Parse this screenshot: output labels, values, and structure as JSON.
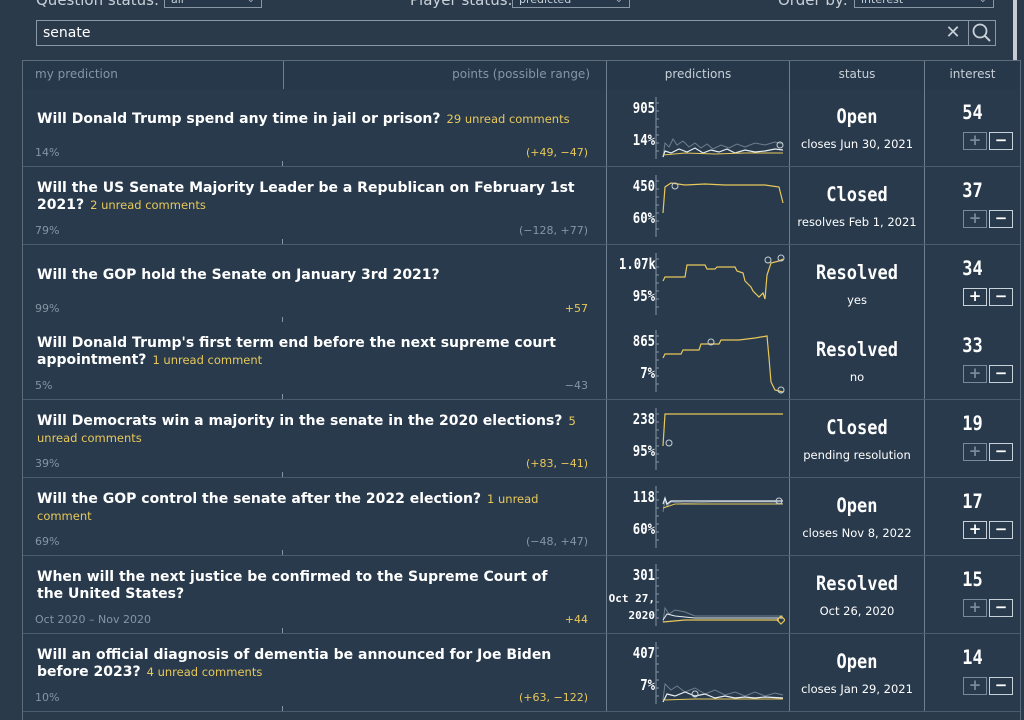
{
  "filters": {
    "question_status_label": "Question status:",
    "question_status_value": "all",
    "player_status_label": "Player status:",
    "player_status_value": "predicted",
    "order_by_label": "Order by:",
    "order_by_value": "interest"
  },
  "search": {
    "value": "senate",
    "clear_glyph": "✕"
  },
  "table_header": {
    "my_prediction": "my prediction",
    "points": "points (possible range)",
    "predictions": "predictions",
    "status": "status",
    "interest": "interest"
  },
  "rows": [
    {
      "title": "Will Donald Trump spend any time in jail or prison?",
      "comments": "29 unread comments",
      "my_prediction": "14%",
      "points": "(+49, −47)",
      "count": "905",
      "community": "14%",
      "status": "Open",
      "status_sub": "closes Jun 30, 2021",
      "interest": "54"
    },
    {
      "title": "Will the US Senate Majority Leader be a Republican on February 1st 2021?",
      "comments": "2 unread comments",
      "my_prediction": "79%",
      "points": "(−128, +77)",
      "count": "450",
      "community": "60%",
      "status": "Closed",
      "status_sub": "resolves Feb 1, 2021",
      "interest": "37"
    },
    {
      "title": "Will the GOP hold the Senate on January 3rd 2021?",
      "comments": "",
      "my_prediction": "99%",
      "points": "+57",
      "count": "1.07k",
      "community": "95%",
      "status": "Resolved",
      "status_sub": "yes",
      "interest": "34"
    },
    {
      "title": "Will Donald Trump's first term end before the next supreme court appointment?",
      "comments": "1 unread comment",
      "my_prediction": "5%",
      "points": "−43",
      "count": "865",
      "community": "7%",
      "status": "Resolved",
      "status_sub": "no",
      "interest": "33"
    },
    {
      "title": "Will Democrats win a majority in the senate in the 2020 elections?",
      "comments": "5 unread comments",
      "my_prediction": "39%",
      "points": "(+83, −41)",
      "count": "238",
      "community": "95%",
      "status": "Closed",
      "status_sub": "pending resolution",
      "interest": "19"
    },
    {
      "title": "Will the GOP control the senate after the 2022 election?",
      "comments": "1 unread comment",
      "my_prediction": "69%",
      "points": "(−48, +47)",
      "count": "118",
      "community": "60%",
      "status": "Open",
      "status_sub": "closes Nov 8, 2022",
      "interest": "17"
    },
    {
      "title": "When will the next justice be confirmed to the Supreme Court of the United States?",
      "comments": "",
      "my_prediction": "Oct 2020 – Nov 2020",
      "points": "+44",
      "count": "301",
      "community_line1": "Oct 27,",
      "community_line2": "2020",
      "status": "Resolved",
      "status_sub": "Oct 26, 2020",
      "interest": "15"
    },
    {
      "title": "Will an official diagnosis of dementia be announced for Joe Biden before 2023?",
      "comments": "4 unread comments",
      "my_prediction": "10%",
      "points": "(+63, −122)",
      "count": "407",
      "community": "7%",
      "status": "Open",
      "status_sub": "closes Jan 29, 2021",
      "interest": "14"
    }
  ],
  "buttons": {
    "plus": "+",
    "minus": "−"
  },
  "colors": {
    "background": "#2b3a4a",
    "accent": "#e8c85a",
    "muted": "#8595a5"
  },
  "icons": {
    "search": "search-icon",
    "clear": "close-icon"
  }
}
